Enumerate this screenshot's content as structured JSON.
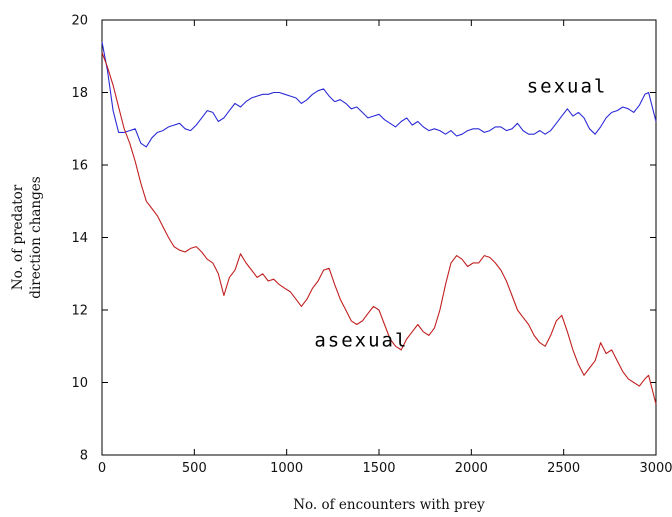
{
  "chart_data": {
    "type": "line",
    "title": "",
    "xlabel": "No. of encounters with prey",
    "ylabel": [
      "No. of predator",
      "direction changes"
    ],
    "xlim": [
      0,
      3000
    ],
    "ylim": [
      8,
      20
    ],
    "xticks": [
      0,
      500,
      1000,
      1500,
      2000,
      2500,
      3000
    ],
    "yticks": [
      8,
      10,
      12,
      14,
      16,
      18,
      20
    ],
    "grid": false,
    "legend": "none",
    "series": [
      {
        "name": "sexual",
        "color": "#2b2bd8",
        "points": [
          [
            0,
            19.4
          ],
          [
            30,
            18.6
          ],
          [
            60,
            17.5
          ],
          [
            90,
            16.9
          ],
          [
            120,
            16.9
          ],
          [
            150,
            16.95
          ],
          [
            180,
            17.0
          ],
          [
            210,
            16.6
          ],
          [
            240,
            16.5
          ],
          [
            270,
            16.75
          ],
          [
            300,
            16.9
          ],
          [
            330,
            16.95
          ],
          [
            360,
            17.05
          ],
          [
            390,
            17.1
          ],
          [
            420,
            17.15
          ],
          [
            450,
            17.0
          ],
          [
            480,
            16.95
          ],
          [
            510,
            17.1
          ],
          [
            540,
            17.3
          ],
          [
            570,
            17.5
          ],
          [
            600,
            17.45
          ],
          [
            630,
            17.2
          ],
          [
            660,
            17.3
          ],
          [
            690,
            17.5
          ],
          [
            720,
            17.7
          ],
          [
            750,
            17.6
          ],
          [
            780,
            17.75
          ],
          [
            810,
            17.85
          ],
          [
            840,
            17.9
          ],
          [
            870,
            17.95
          ],
          [
            900,
            17.95
          ],
          [
            930,
            18.0
          ],
          [
            960,
            18.0
          ],
          [
            990,
            17.95
          ],
          [
            1020,
            17.9
          ],
          [
            1050,
            17.85
          ],
          [
            1080,
            17.7
          ],
          [
            1110,
            17.8
          ],
          [
            1140,
            17.95
          ],
          [
            1170,
            18.05
          ],
          [
            1200,
            18.1
          ],
          [
            1230,
            17.9
          ],
          [
            1260,
            17.75
          ],
          [
            1290,
            17.8
          ],
          [
            1320,
            17.7
          ],
          [
            1350,
            17.55
          ],
          [
            1380,
            17.6
          ],
          [
            1410,
            17.45
          ],
          [
            1440,
            17.3
          ],
          [
            1470,
            17.35
          ],
          [
            1500,
            17.4
          ],
          [
            1530,
            17.25
          ],
          [
            1560,
            17.15
          ],
          [
            1590,
            17.05
          ],
          [
            1620,
            17.2
          ],
          [
            1650,
            17.3
          ],
          [
            1680,
            17.1
          ],
          [
            1710,
            17.2
          ],
          [
            1740,
            17.05
          ],
          [
            1770,
            16.95
          ],
          [
            1800,
            17.0
          ],
          [
            1830,
            16.95
          ],
          [
            1860,
            16.85
          ],
          [
            1890,
            16.95
          ],
          [
            1920,
            16.8
          ],
          [
            1950,
            16.85
          ],
          [
            1980,
            16.95
          ],
          [
            2010,
            17.0
          ],
          [
            2040,
            17.0
          ],
          [
            2070,
            16.9
          ],
          [
            2100,
            16.95
          ],
          [
            2130,
            17.05
          ],
          [
            2160,
            17.05
          ],
          [
            2190,
            16.95
          ],
          [
            2220,
            17.0
          ],
          [
            2250,
            17.15
          ],
          [
            2280,
            16.95
          ],
          [
            2310,
            16.85
          ],
          [
            2340,
            16.85
          ],
          [
            2370,
            16.95
          ],
          [
            2400,
            16.85
          ],
          [
            2430,
            16.95
          ],
          [
            2460,
            17.15
          ],
          [
            2490,
            17.35
          ],
          [
            2520,
            17.55
          ],
          [
            2550,
            17.35
          ],
          [
            2580,
            17.45
          ],
          [
            2610,
            17.3
          ],
          [
            2640,
            17.0
          ],
          [
            2670,
            16.85
          ],
          [
            2700,
            17.05
          ],
          [
            2730,
            17.3
          ],
          [
            2760,
            17.45
          ],
          [
            2790,
            17.5
          ],
          [
            2820,
            17.6
          ],
          [
            2850,
            17.55
          ],
          [
            2880,
            17.45
          ],
          [
            2910,
            17.65
          ],
          [
            2940,
            17.95
          ],
          [
            2960,
            18.0
          ],
          [
            2980,
            17.6
          ],
          [
            3000,
            17.2
          ]
        ]
      },
      {
        "name": "asexual",
        "color": "#c21f1f",
        "points": [
          [
            0,
            19.1
          ],
          [
            30,
            18.7
          ],
          [
            60,
            18.2
          ],
          [
            90,
            17.6
          ],
          [
            120,
            17.0
          ],
          [
            150,
            16.6
          ],
          [
            180,
            16.1
          ],
          [
            210,
            15.5
          ],
          [
            240,
            15.0
          ],
          [
            270,
            14.8
          ],
          [
            300,
            14.6
          ],
          [
            330,
            14.3
          ],
          [
            360,
            14.0
          ],
          [
            390,
            13.75
          ],
          [
            420,
            13.65
          ],
          [
            450,
            13.6
          ],
          [
            480,
            13.7
          ],
          [
            510,
            13.75
          ],
          [
            540,
            13.6
          ],
          [
            570,
            13.4
          ],
          [
            600,
            13.3
          ],
          [
            630,
            13.0
          ],
          [
            660,
            12.4
          ],
          [
            690,
            12.9
          ],
          [
            720,
            13.1
          ],
          [
            750,
            13.55
          ],
          [
            780,
            13.3
          ],
          [
            810,
            13.1
          ],
          [
            840,
            12.9
          ],
          [
            870,
            13.0
          ],
          [
            900,
            12.8
          ],
          [
            930,
            12.85
          ],
          [
            960,
            12.7
          ],
          [
            990,
            12.6
          ],
          [
            1020,
            12.5
          ],
          [
            1050,
            12.3
          ],
          [
            1080,
            12.1
          ],
          [
            1110,
            12.3
          ],
          [
            1140,
            12.6
          ],
          [
            1170,
            12.8
          ],
          [
            1200,
            13.1
          ],
          [
            1230,
            13.15
          ],
          [
            1260,
            12.7
          ],
          [
            1290,
            12.3
          ],
          [
            1320,
            12.0
          ],
          [
            1350,
            11.7
          ],
          [
            1380,
            11.6
          ],
          [
            1410,
            11.7
          ],
          [
            1440,
            11.9
          ],
          [
            1470,
            12.1
          ],
          [
            1500,
            12.0
          ],
          [
            1530,
            11.6
          ],
          [
            1560,
            11.2
          ],
          [
            1590,
            11.0
          ],
          [
            1620,
            10.9
          ],
          [
            1650,
            11.2
          ],
          [
            1680,
            11.4
          ],
          [
            1710,
            11.6
          ],
          [
            1740,
            11.4
          ],
          [
            1770,
            11.3
          ],
          [
            1800,
            11.5
          ],
          [
            1830,
            12.0
          ],
          [
            1860,
            12.7
          ],
          [
            1890,
            13.3
          ],
          [
            1920,
            13.5
          ],
          [
            1950,
            13.4
          ],
          [
            1980,
            13.2
          ],
          [
            2010,
            13.3
          ],
          [
            2040,
            13.3
          ],
          [
            2070,
            13.5
          ],
          [
            2100,
            13.45
          ],
          [
            2130,
            13.3
          ],
          [
            2160,
            13.1
          ],
          [
            2190,
            12.8
          ],
          [
            2220,
            12.4
          ],
          [
            2250,
            12.0
          ],
          [
            2280,
            11.8
          ],
          [
            2310,
            11.6
          ],
          [
            2340,
            11.3
          ],
          [
            2370,
            11.1
          ],
          [
            2400,
            11.0
          ],
          [
            2430,
            11.3
          ],
          [
            2460,
            11.7
          ],
          [
            2490,
            11.85
          ],
          [
            2520,
            11.4
          ],
          [
            2550,
            10.9
          ],
          [
            2580,
            10.5
          ],
          [
            2610,
            10.2
          ],
          [
            2640,
            10.4
          ],
          [
            2670,
            10.6
          ],
          [
            2700,
            11.1
          ],
          [
            2730,
            10.8
          ],
          [
            2760,
            10.9
          ],
          [
            2790,
            10.6
          ],
          [
            2820,
            10.3
          ],
          [
            2850,
            10.1
          ],
          [
            2880,
            10.0
          ],
          [
            2910,
            9.9
          ],
          [
            2940,
            10.1
          ],
          [
            2960,
            10.2
          ],
          [
            2980,
            9.8
          ],
          [
            3000,
            9.4
          ]
        ]
      }
    ],
    "annotations": [
      {
        "text": "sexual",
        "x": 2300,
        "y": 18.0
      },
      {
        "text": "asexual",
        "x": 1150,
        "y": 11.0
      }
    ]
  }
}
